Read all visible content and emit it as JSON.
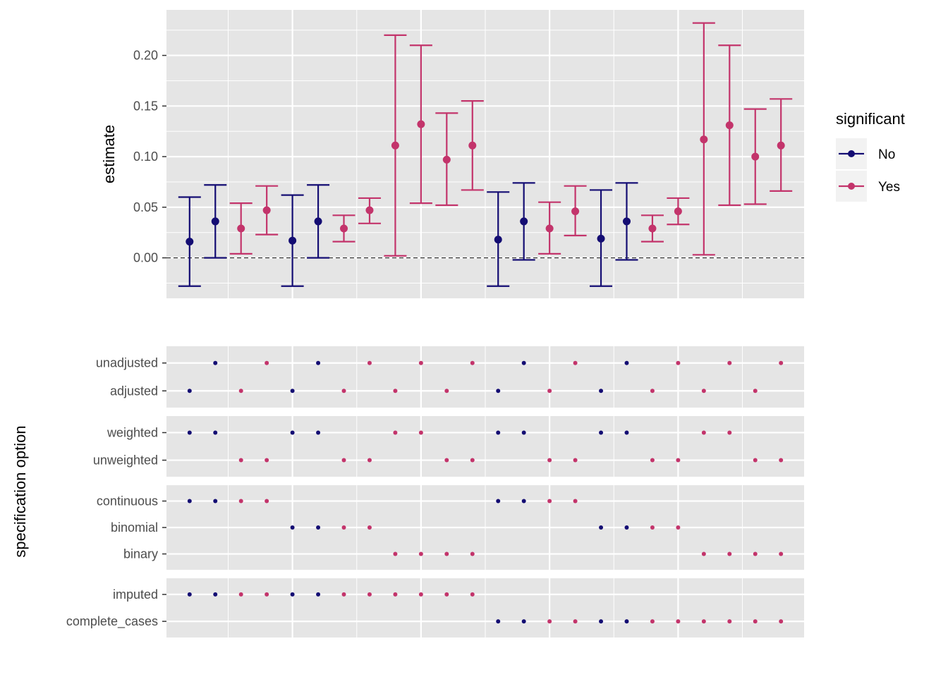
{
  "colors": {
    "panel_bg": "#e5e5e5",
    "grid": "#ffffff",
    "text": "#4d4d4d",
    "title": "#000000",
    "no": "#140d73",
    "yes": "#c3346b"
  },
  "legend": {
    "title": "significant",
    "entries": [
      {
        "label": "No",
        "color": "#140d73"
      },
      {
        "label": "Yes",
        "color": "#c3346b"
      }
    ]
  },
  "chart_data": [
    {
      "type": "scatter",
      "ylabel": "estimate",
      "xlabel": "",
      "ylim": [
        -0.04,
        0.245
      ],
      "yticks": [
        0.0,
        0.05,
        0.1,
        0.15,
        0.2
      ],
      "ytick_labels": [
        "0.00",
        "0.05",
        "0.10",
        "0.15",
        "0.20"
      ],
      "reference_line": 0.0,
      "x": [
        1,
        2,
        3,
        4,
        5,
        6,
        7,
        8,
        9,
        10,
        11,
        12,
        13,
        14,
        15,
        16,
        17,
        18,
        19,
        20,
        21,
        22,
        23,
        24
      ],
      "estimate": [
        0.016,
        0.036,
        0.029,
        0.047,
        0.017,
        0.036,
        0.029,
        0.047,
        0.111,
        0.132,
        0.097,
        0.111,
        0.018,
        0.036,
        0.029,
        0.046,
        0.019,
        0.036,
        0.029,
        0.046,
        0.117,
        0.131,
        0.1,
        0.111
      ],
      "lower": [
        -0.028,
        0.0,
        0.004,
        0.023,
        -0.028,
        0.0,
        0.016,
        0.034,
        0.002,
        0.054,
        0.052,
        0.067,
        -0.028,
        -0.002,
        0.004,
        0.022,
        -0.028,
        -0.002,
        0.016,
        0.033,
        0.003,
        0.052,
        0.053,
        0.066
      ],
      "upper": [
        0.06,
        0.072,
        0.054,
        0.071,
        0.062,
        0.072,
        0.042,
        0.059,
        0.22,
        0.21,
        0.143,
        0.155,
        0.065,
        0.074,
        0.055,
        0.071,
        0.067,
        0.074,
        0.042,
        0.059,
        0.232,
        0.21,
        0.147,
        0.157
      ],
      "significant": [
        "No",
        "No",
        "Yes",
        "Yes",
        "No",
        "No",
        "Yes",
        "Yes",
        "Yes",
        "Yes",
        "Yes",
        "Yes",
        "No",
        "No",
        "Yes",
        "Yes",
        "No",
        "No",
        "Yes",
        "Yes",
        "Yes",
        "Yes",
        "Yes",
        "Yes"
      ]
    },
    {
      "type": "scatter",
      "ylabel": "specification option",
      "panels": [
        {
          "options": [
            "unadjusted",
            "adjusted"
          ],
          "values": [
            "adjusted",
            "unadjusted",
            "adjusted",
            "unadjusted",
            "adjusted",
            "unadjusted",
            "adjusted",
            "unadjusted",
            "adjusted",
            "unadjusted",
            "adjusted",
            "unadjusted",
            "adjusted",
            "unadjusted",
            "adjusted",
            "unadjusted",
            "adjusted",
            "unadjusted",
            "adjusted",
            "unadjusted",
            "adjusted",
            "unadjusted",
            "adjusted",
            "unadjusted"
          ]
        },
        {
          "options": [
            "weighted",
            "unweighted"
          ],
          "values": [
            "weighted",
            "weighted",
            "unweighted",
            "unweighted",
            "weighted",
            "weighted",
            "unweighted",
            "unweighted",
            "weighted",
            "weighted",
            "unweighted",
            "unweighted",
            "weighted",
            "weighted",
            "unweighted",
            "unweighted",
            "weighted",
            "weighted",
            "unweighted",
            "unweighted",
            "weighted",
            "weighted",
            "unweighted",
            "unweighted"
          ]
        },
        {
          "options": [
            "continuous",
            "binomial",
            "binary"
          ],
          "values": [
            "continuous",
            "continuous",
            "continuous",
            "continuous",
            "binomial",
            "binomial",
            "binomial",
            "binomial",
            "binary",
            "binary",
            "binary",
            "binary",
            "continuous",
            "continuous",
            "continuous",
            "continuous",
            "binomial",
            "binomial",
            "binomial",
            "binomial",
            "binary",
            "binary",
            "binary",
            "binary"
          ]
        },
        {
          "options": [
            "imputed",
            "complete_cases"
          ],
          "values": [
            "imputed",
            "imputed",
            "imputed",
            "imputed",
            "imputed",
            "imputed",
            "imputed",
            "imputed",
            "imputed",
            "imputed",
            "imputed",
            "imputed",
            "complete_cases",
            "complete_cases",
            "complete_cases",
            "complete_cases",
            "complete_cases",
            "complete_cases",
            "complete_cases",
            "complete_cases",
            "complete_cases",
            "complete_cases",
            "complete_cases",
            "complete_cases"
          ]
        }
      ]
    }
  ]
}
